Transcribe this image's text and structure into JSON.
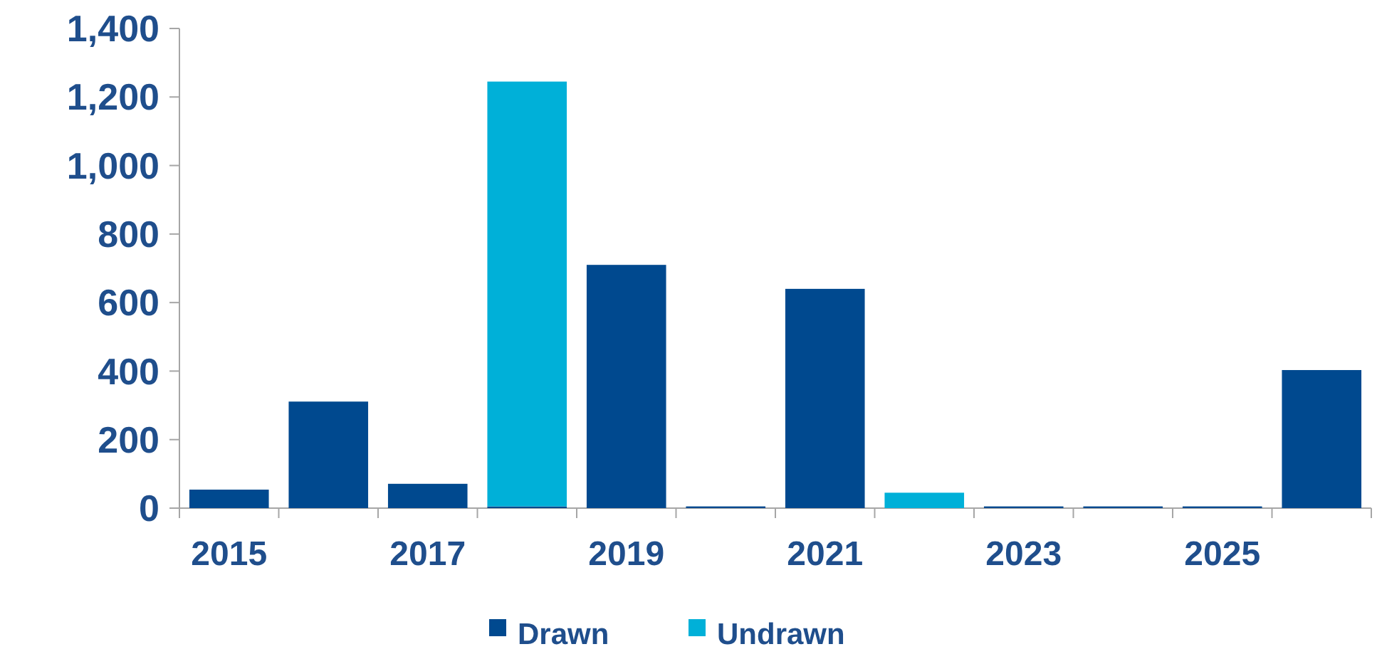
{
  "chart_data": {
    "type": "bar",
    "stacked": true,
    "categories": [
      "2015",
      null,
      "2017",
      null,
      "2019",
      null,
      "2021",
      null,
      "2023",
      null,
      "2025",
      null
    ],
    "series": [
      {
        "name": "Drawn",
        "color": "#00498f",
        "values": [
          54,
          311,
          71,
          5,
          710,
          5,
          640,
          0,
          5,
          5,
          5,
          403
        ]
      },
      {
        "name": "Undrawn",
        "color": "#00b0d8",
        "values": [
          0,
          0,
          0,
          1240,
          0,
          0,
          0,
          45,
          0,
          0,
          0,
          0
        ]
      }
    ],
    "ylim": [
      0,
      1400
    ],
    "yticks": [
      {
        "value": 0,
        "label": "0"
      },
      {
        "value": 200,
        "label": "200"
      },
      {
        "value": 400,
        "label": "400"
      },
      {
        "value": 600,
        "label": "600"
      },
      {
        "value": 800,
        "label": "800"
      },
      {
        "value": 1000,
        "label": "1,000"
      },
      {
        "value": 1200,
        "label": "1,200"
      },
      {
        "value": 1400,
        "label": "1,400"
      }
    ],
    "grid": false,
    "legend": "bottom"
  }
}
